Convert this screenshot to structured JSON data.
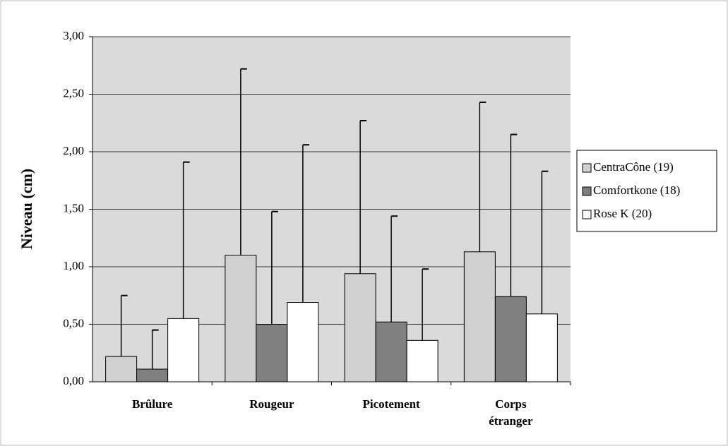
{
  "chart_data": {
    "type": "bar",
    "ylabel": "Niveau (cm)",
    "categories": [
      "Brûlure",
      "Rougeur",
      "Picotement",
      "Corps étranger"
    ],
    "series": [
      {
        "name": "CentraCône (19)",
        "color": "#d0d0d0",
        "values": [
          0.22,
          1.1,
          0.94,
          1.13
        ],
        "errors": [
          0.53,
          1.62,
          1.33,
          1.3
        ]
      },
      {
        "name": "Comfortkone (18)",
        "color": "#808080",
        "values": [
          0.11,
          0.5,
          0.52,
          0.74
        ],
        "errors": [
          0.34,
          0.98,
          0.92,
          1.41
        ]
      },
      {
        "name": "Rose K (20)",
        "color": "#ffffff",
        "values": [
          0.55,
          0.69,
          0.36,
          0.59
        ],
        "errors": [
          1.36,
          1.37,
          0.62,
          1.24
        ]
      }
    ],
    "ylim": [
      0,
      3
    ],
    "yticks": [
      {
        "value": 0,
        "label": "0,00"
      },
      {
        "value": 0.5,
        "label": "0,50"
      },
      {
        "value": 1,
        "label": "1,00"
      },
      {
        "value": 1.5,
        "label": "1,50"
      },
      {
        "value": 2,
        "label": "2,00"
      },
      {
        "value": 2.5,
        "label": "2,50"
      },
      {
        "value": 3,
        "label": "3,00"
      }
    ],
    "grid": true,
    "legend": "right"
  }
}
